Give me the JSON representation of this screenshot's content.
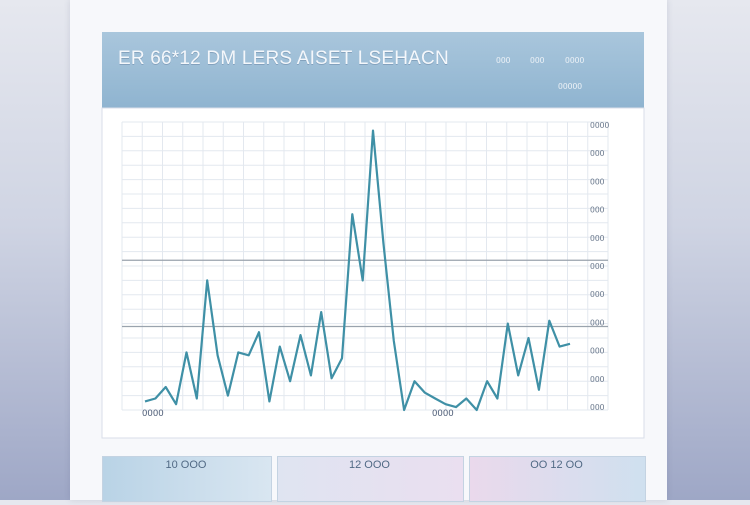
{
  "header": {
    "title": "ER 66*12 DM LERS AISET LSEHACN",
    "meta_top_1": "ООО",
    "meta_top_2": "ООО",
    "meta_top_3": "ОООО",
    "meta_bottom": "ООООО"
  },
  "chart_data": {
    "type": "line",
    "series": [
      {
        "values": [
          3,
          4,
          8,
          2,
          20,
          4,
          45,
          19,
          5,
          20,
          19,
          27,
          3,
          22,
          10,
          26,
          12,
          34,
          11,
          18,
          68,
          45,
          97,
          58,
          24,
          0,
          10,
          6,
          4,
          2,
          1,
          4,
          0,
          10,
          4,
          30,
          12,
          25,
          7,
          31,
          22,
          23
        ]
      }
    ],
    "ylim": [
      0,
      100
    ],
    "y_tick_labels": [
      "ОООО",
      "ООО",
      "ООО",
      "ООО",
      "ООО",
      "ООО",
      "ООО",
      "ООО",
      "ООО",
      "ООО",
      "ООО"
    ],
    "x_tick_labels": [
      "ОООО",
      "ОООО"
    ],
    "reference_lines": [
      52,
      29
    ],
    "grid": true,
    "accent_color": "#3f90a6"
  },
  "cards": [
    {
      "label": "10 ООО"
    },
    {
      "label": "12 ООО"
    },
    {
      "label": "ОО 12 ОО"
    }
  ]
}
